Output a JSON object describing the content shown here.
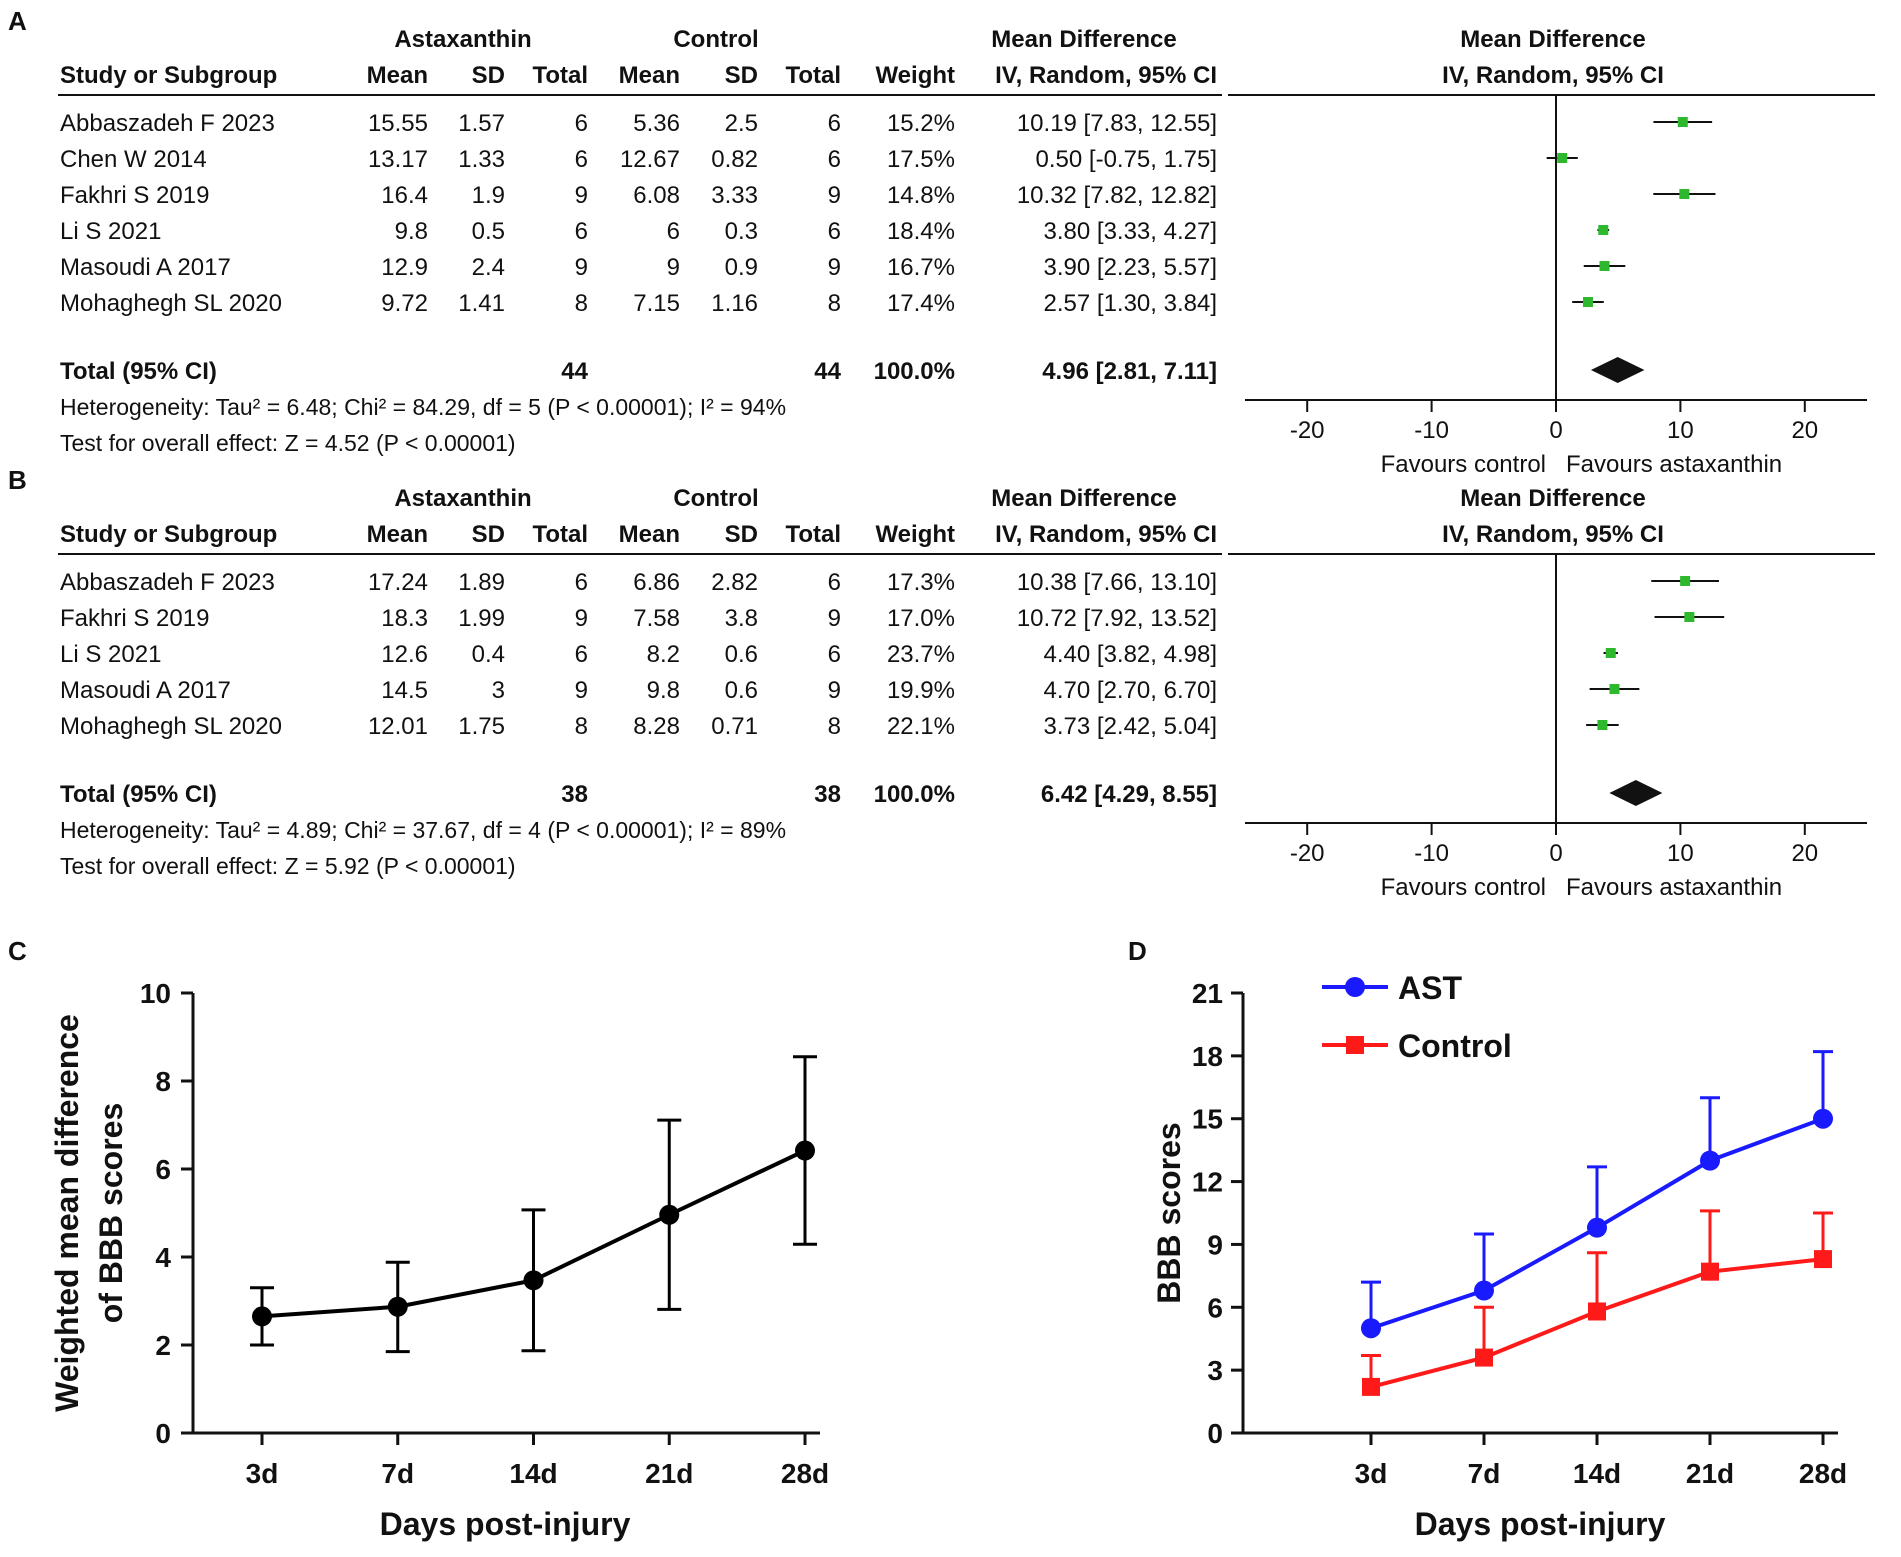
{
  "chart_data": [
    {
      "panel": "A",
      "type": "table",
      "subtype": "forest-plot",
      "group1_title": "Astaxanthin",
      "group2_title": "Control",
      "md_title": "Mean Difference",
      "md_subtitle": "IV, Random, 95% CI",
      "columns": [
        "Study or Subgroup",
        "Mean",
        "SD",
        "Total",
        "Mean",
        "SD",
        "Total",
        "Weight",
        "IV, Random, 95% CI"
      ],
      "rows": [
        {
          "study": "Abbaszadeh F 2023",
          "m1": "15.55",
          "sd1": "1.57",
          "n1": "6",
          "m2": "5.36",
          "sd2": "2.5",
          "n2": "6",
          "weight": "15.2%",
          "ci": "10.19 [7.83, 12.55]",
          "md": 10.19,
          "lo": 7.83,
          "hi": 12.55
        },
        {
          "study": "Chen W 2014",
          "m1": "13.17",
          "sd1": "1.33",
          "n1": "6",
          "m2": "12.67",
          "sd2": "0.82",
          "n2": "6",
          "weight": "17.5%",
          "ci": "0.50 [-0.75, 1.75]",
          "md": 0.5,
          "lo": -0.75,
          "hi": 1.75
        },
        {
          "study": "Fakhri S 2019",
          "m1": "16.4",
          "sd1": "1.9",
          "n1": "9",
          "m2": "6.08",
          "sd2": "3.33",
          "n2": "9",
          "weight": "14.8%",
          "ci": "10.32 [7.82, 12.82]",
          "md": 10.32,
          "lo": 7.82,
          "hi": 12.82
        },
        {
          "study": "Li S 2021",
          "m1": "9.8",
          "sd1": "0.5",
          "n1": "6",
          "m2": "6",
          "sd2": "0.3",
          "n2": "6",
          "weight": "18.4%",
          "ci": "3.80 [3.33, 4.27]",
          "md": 3.8,
          "lo": 3.33,
          "hi": 4.27
        },
        {
          "study": "Masoudi A 2017",
          "m1": "12.9",
          "sd1": "2.4",
          "n1": "9",
          "m2": "9",
          "sd2": "0.9",
          "n2": "9",
          "weight": "16.7%",
          "ci": "3.90 [2.23, 5.57]",
          "md": 3.9,
          "lo": 2.23,
          "hi": 5.57
        },
        {
          "study": "Mohaghegh SL 2020",
          "m1": "9.72",
          "sd1": "1.41",
          "n1": "8",
          "m2": "7.15",
          "sd2": "1.16",
          "n2": "8",
          "weight": "17.4%",
          "ci": "2.57 [1.30, 3.84]",
          "md": 2.57,
          "lo": 1.3,
          "hi": 3.84
        }
      ],
      "total": {
        "label": "Total (95% CI)",
        "n1": "44",
        "n2": "44",
        "weight": "100.0%",
        "ci": "4.96 [2.81, 7.11]",
        "md": 4.96,
        "lo": 2.81,
        "hi": 7.11
      },
      "heterogeneity": "Heterogeneity: Tau² = 6.48; Chi² = 84.29, df = 5 (P < 0.00001); I² = 94%",
      "overall": "Test for overall effect: Z = 4.52 (P < 0.00001)",
      "xlim": [
        -25,
        25
      ],
      "xticks": [
        "-20",
        "-10",
        "0",
        "10",
        "20"
      ],
      "favours_left": "Favours control",
      "favours_right": "Favours astaxanthin"
    },
    {
      "panel": "B",
      "type": "table",
      "subtype": "forest-plot",
      "group1_title": "Astaxanthin",
      "group2_title": "Control",
      "md_title": "Mean Difference",
      "md_subtitle": "IV, Random, 95% CI",
      "columns": [
        "Study or Subgroup",
        "Mean",
        "SD",
        "Total",
        "Mean",
        "SD",
        "Total",
        "Weight",
        "IV, Random, 95% CI"
      ],
      "rows": [
        {
          "study": "Abbaszadeh F 2023",
          "m1": "17.24",
          "sd1": "1.89",
          "n1": "6",
          "m2": "6.86",
          "sd2": "2.82",
          "n2": "6",
          "weight": "17.3%",
          "ci": "10.38 [7.66, 13.10]",
          "md": 10.38,
          "lo": 7.66,
          "hi": 13.1
        },
        {
          "study": "Fakhri S 2019",
          "m1": "18.3",
          "sd1": "1.99",
          "n1": "9",
          "m2": "7.58",
          "sd2": "3.8",
          "n2": "9",
          "weight": "17.0%",
          "ci": "10.72 [7.92, 13.52]",
          "md": 10.72,
          "lo": 7.92,
          "hi": 13.52
        },
        {
          "study": "Li S 2021",
          "m1": "12.6",
          "sd1": "0.4",
          "n1": "6",
          "m2": "8.2",
          "sd2": "0.6",
          "n2": "6",
          "weight": "23.7%",
          "ci": "4.40 [3.82, 4.98]",
          "md": 4.4,
          "lo": 3.82,
          "hi": 4.98
        },
        {
          "study": "Masoudi A 2017",
          "m1": "14.5",
          "sd1": "3",
          "n1": "9",
          "m2": "9.8",
          "sd2": "0.6",
          "n2": "9",
          "weight": "19.9%",
          "ci": "4.70 [2.70, 6.70]",
          "md": 4.7,
          "lo": 2.7,
          "hi": 6.7
        },
        {
          "study": "Mohaghegh SL 2020",
          "m1": "12.01",
          "sd1": "1.75",
          "n1": "8",
          "m2": "8.28",
          "sd2": "0.71",
          "n2": "8",
          "weight": "22.1%",
          "ci": "3.73 [2.42, 5.04]",
          "md": 3.73,
          "lo": 2.42,
          "hi": 5.04
        }
      ],
      "total": {
        "label": "Total (95% CI)",
        "n1": "38",
        "n2": "38",
        "weight": "100.0%",
        "ci": "6.42 [4.29, 8.55]",
        "md": 6.42,
        "lo": 4.29,
        "hi": 8.55
      },
      "heterogeneity": "Heterogeneity: Tau² = 4.89; Chi² = 37.67, df = 4 (P < 0.00001); I² = 89%",
      "overall": "Test for overall effect: Z = 5.92 (P < 0.00001)",
      "xlim": [
        -25,
        25
      ],
      "xticks": [
        "-20",
        "-10",
        "0",
        "10",
        "20"
      ],
      "favours_left": "Favours control",
      "favours_right": "Favours astaxanthin"
    },
    {
      "panel": "C",
      "type": "line",
      "categories": [
        "3d",
        "7d",
        "14d",
        "21d",
        "28d"
      ],
      "series": [
        {
          "name": "Weighted mean difference",
          "values": [
            2.65,
            2.87,
            3.47,
            4.96,
            6.42
          ],
          "err_lo": [
            2.0,
            1.85,
            1.87,
            2.81,
            4.29
          ],
          "err_hi": [
            3.3,
            3.88,
            5.07,
            7.11,
            8.55
          ],
          "color": "#000000"
        }
      ],
      "ylim": [
        0,
        10
      ],
      "yticks": [
        "0",
        "2",
        "4",
        "6",
        "8",
        "10"
      ],
      "xlabel": "Days post-injury",
      "ylabel_line1": "Weighted mean difference",
      "ylabel_line2": "of BBB scores"
    },
    {
      "panel": "D",
      "type": "line",
      "categories": [
        "3d",
        "7d",
        "14d",
        "21d",
        "28d"
      ],
      "series": [
        {
          "name": "AST",
          "values": [
            5.0,
            6.8,
            9.8,
            13.0,
            15.0
          ],
          "err_hi": [
            7.2,
            9.5,
            12.7,
            16.0,
            18.2
          ],
          "color": "#1a1aff",
          "marker": "circle"
        },
        {
          "name": "Control",
          "values": [
            2.2,
            3.6,
            5.8,
            7.7,
            8.3
          ],
          "err_hi": [
            3.7,
            6.0,
            8.6,
            10.6,
            10.5
          ],
          "color": "#ff1a1a",
          "marker": "square"
        }
      ],
      "ylim": [
        0,
        21
      ],
      "yticks": [
        "0",
        "3",
        "6",
        "9",
        "12",
        "15",
        "18",
        "21"
      ],
      "xlabel": "Days post-injury",
      "ylabel": "BBB scores",
      "legend": "top-left"
    }
  ]
}
